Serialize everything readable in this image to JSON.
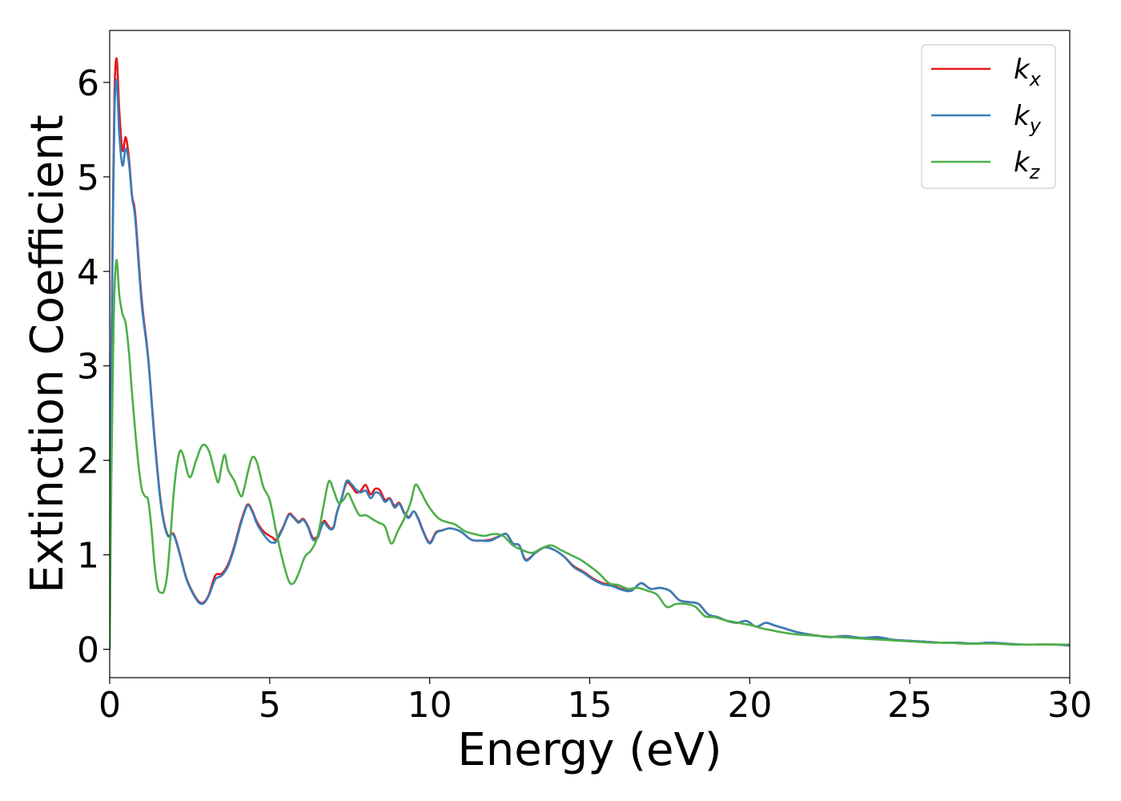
{
  "chart_data": {
    "type": "line",
    "xlabel": "Energy (eV)",
    "ylabel": "Extinction Coefficient",
    "xlim": [
      0,
      30
    ],
    "ylim": [
      -0.3,
      6.55
    ],
    "xticks": [
      0,
      5,
      10,
      15,
      20,
      25,
      30
    ],
    "yticks": [
      0,
      1,
      2,
      3,
      4,
      5,
      6
    ],
    "grid": false,
    "legend_position": "top-right",
    "series": [
      {
        "name": "k_x",
        "label_main": "k",
        "label_sub": "x",
        "color": "#e41a1c",
        "x": [
          0,
          0.05,
          0.1,
          0.15,
          0.22,
          0.3,
          0.4,
          0.5,
          0.6,
          0.7,
          0.8,
          1.0,
          1.2,
          1.4,
          1.6,
          1.8,
          2.0,
          2.2,
          2.4,
          2.6,
          2.8,
          2.95,
          3.1,
          3.3,
          3.5,
          3.7,
          3.9,
          4.1,
          4.3,
          4.45,
          4.6,
          4.8,
          5.0,
          5.1,
          5.2,
          5.4,
          5.6,
          5.75,
          5.9,
          6.05,
          6.2,
          6.35,
          6.5,
          6.6,
          6.7,
          6.8,
          6.9,
          7.0,
          7.1,
          7.25,
          7.4,
          7.55,
          7.7,
          7.85,
          8.0,
          8.15,
          8.3,
          8.45,
          8.6,
          8.75,
          8.9,
          9.05,
          9.2,
          9.35,
          9.5,
          9.65,
          9.8,
          10.0,
          10.2,
          10.4,
          10.6,
          10.8,
          11.0,
          11.3,
          11.6,
          11.9,
          12.2,
          12.4,
          12.6,
          12.8,
          13.0,
          13.3,
          13.6,
          13.9,
          14.2,
          14.5,
          14.8,
          15.1,
          15.4,
          15.7,
          16.0,
          16.3,
          16.6,
          16.9,
          17.2,
          17.5,
          17.8,
          18.1,
          18.4,
          18.7,
          19.0,
          19.3,
          19.6,
          19.9,
          20.2,
          20.5,
          20.8,
          21.1,
          21.5,
          22.0,
          22.5,
          23.0,
          23.5,
          24.0,
          24.5,
          25.0,
          25.5,
          26.0,
          26.5,
          27.0,
          27.5,
          28.0,
          28.5,
          29.0,
          29.5,
          30.0
        ],
        "y": [
          0,
          3.0,
          4.6,
          5.9,
          6.25,
          5.7,
          5.28,
          5.42,
          5.2,
          4.8,
          4.6,
          3.7,
          3.1,
          2.25,
          1.55,
          1.22,
          1.22,
          1.0,
          0.75,
          0.6,
          0.5,
          0.5,
          0.58,
          0.78,
          0.8,
          0.9,
          1.1,
          1.35,
          1.53,
          1.47,
          1.35,
          1.25,
          1.2,
          1.18,
          1.16,
          1.28,
          1.43,
          1.4,
          1.35,
          1.38,
          1.3,
          1.18,
          1.2,
          1.3,
          1.36,
          1.32,
          1.28,
          1.3,
          1.45,
          1.6,
          1.76,
          1.73,
          1.66,
          1.68,
          1.74,
          1.64,
          1.7,
          1.68,
          1.58,
          1.6,
          1.52,
          1.55,
          1.45,
          1.4,
          1.46,
          1.38,
          1.25,
          1.13,
          1.24,
          1.26,
          1.28,
          1.27,
          1.24,
          1.16,
          1.15,
          1.16,
          1.2,
          1.22,
          1.12,
          1.1,
          0.95,
          1.02,
          1.08,
          1.05,
          0.98,
          0.88,
          0.82,
          0.75,
          0.7,
          0.68,
          0.64,
          0.62,
          0.7,
          0.64,
          0.65,
          0.62,
          0.52,
          0.5,
          0.48,
          0.37,
          0.34,
          0.3,
          0.28,
          0.3,
          0.24,
          0.28,
          0.25,
          0.22,
          0.18,
          0.15,
          0.13,
          0.14,
          0.12,
          0.12,
          0.1,
          0.09,
          0.08,
          0.07,
          0.07,
          0.06,
          0.07,
          0.06,
          0.05,
          0.05,
          0.05,
          0.04
        ]
      },
      {
        "name": "k_y",
        "label_main": "k",
        "label_sub": "y",
        "color": "#377eb8",
        "x": [
          0,
          0.05,
          0.1,
          0.15,
          0.22,
          0.3,
          0.4,
          0.5,
          0.6,
          0.7,
          0.8,
          1.0,
          1.2,
          1.4,
          1.6,
          1.8,
          2.0,
          2.2,
          2.4,
          2.6,
          2.8,
          2.95,
          3.1,
          3.3,
          3.5,
          3.7,
          3.9,
          4.1,
          4.3,
          4.45,
          4.6,
          4.8,
          5.0,
          5.1,
          5.2,
          5.4,
          5.6,
          5.75,
          5.9,
          6.05,
          6.2,
          6.35,
          6.5,
          6.6,
          6.7,
          6.8,
          6.9,
          7.0,
          7.1,
          7.25,
          7.4,
          7.55,
          7.7,
          7.85,
          8.0,
          8.15,
          8.3,
          8.45,
          8.6,
          8.75,
          8.9,
          9.05,
          9.2,
          9.35,
          9.5,
          9.65,
          9.8,
          10.0,
          10.2,
          10.4,
          10.6,
          10.8,
          11.0,
          11.3,
          11.6,
          11.9,
          12.2,
          12.4,
          12.6,
          12.8,
          13.0,
          13.3,
          13.6,
          13.9,
          14.2,
          14.5,
          14.8,
          15.1,
          15.4,
          15.7,
          16.0,
          16.3,
          16.6,
          16.9,
          17.2,
          17.5,
          17.8,
          18.1,
          18.4,
          18.7,
          19.0,
          19.3,
          19.6,
          19.9,
          20.2,
          20.5,
          20.8,
          21.1,
          21.5,
          22.0,
          22.5,
          23.0,
          23.5,
          24.0,
          24.5,
          25.0,
          25.5,
          26.0,
          26.5,
          27.0,
          27.5,
          28.0,
          28.5,
          29.0,
          29.5,
          30.0
        ],
        "y": [
          0,
          2.9,
          4.5,
          5.7,
          6.02,
          5.45,
          5.12,
          5.3,
          5.15,
          4.78,
          4.55,
          3.65,
          3.08,
          2.22,
          1.53,
          1.21,
          1.21,
          0.99,
          0.74,
          0.59,
          0.49,
          0.49,
          0.57,
          0.74,
          0.78,
          0.88,
          1.08,
          1.33,
          1.52,
          1.46,
          1.33,
          1.22,
          1.14,
          1.13,
          1.14,
          1.27,
          1.42,
          1.39,
          1.34,
          1.37,
          1.29,
          1.16,
          1.18,
          1.28,
          1.34,
          1.3,
          1.27,
          1.29,
          1.44,
          1.6,
          1.78,
          1.75,
          1.69,
          1.66,
          1.68,
          1.6,
          1.66,
          1.64,
          1.56,
          1.59,
          1.5,
          1.54,
          1.44,
          1.39,
          1.46,
          1.37,
          1.24,
          1.12,
          1.23,
          1.26,
          1.28,
          1.27,
          1.24,
          1.16,
          1.15,
          1.15,
          1.2,
          1.22,
          1.12,
          1.1,
          0.94,
          1.02,
          1.08,
          1.05,
          0.98,
          0.87,
          0.81,
          0.74,
          0.69,
          0.67,
          0.63,
          0.62,
          0.7,
          0.64,
          0.65,
          0.62,
          0.52,
          0.5,
          0.48,
          0.37,
          0.34,
          0.3,
          0.28,
          0.3,
          0.24,
          0.28,
          0.25,
          0.22,
          0.18,
          0.15,
          0.13,
          0.14,
          0.12,
          0.13,
          0.1,
          0.09,
          0.08,
          0.07,
          0.07,
          0.06,
          0.07,
          0.06,
          0.05,
          0.05,
          0.05,
          0.04
        ]
      },
      {
        "name": "k_z",
        "label_main": "k",
        "label_sub": "z",
        "color": "#4daf4a",
        "x": [
          0,
          0.05,
          0.1,
          0.15,
          0.22,
          0.3,
          0.4,
          0.5,
          0.6,
          0.7,
          0.8,
          0.9,
          1.0,
          1.1,
          1.2,
          1.3,
          1.4,
          1.5,
          1.6,
          1.7,
          1.8,
          1.9,
          2.0,
          2.1,
          2.2,
          2.3,
          2.5,
          2.7,
          2.9,
          3.1,
          3.3,
          3.4,
          3.5,
          3.6,
          3.7,
          3.9,
          4.1,
          4.2,
          4.3,
          4.45,
          4.6,
          4.8,
          5.0,
          5.2,
          5.4,
          5.6,
          5.75,
          5.9,
          6.1,
          6.3,
          6.5,
          6.7,
          6.85,
          7.0,
          7.15,
          7.3,
          7.45,
          7.6,
          7.8,
          8.0,
          8.2,
          8.4,
          8.6,
          8.8,
          9.0,
          9.2,
          9.4,
          9.55,
          9.7,
          9.9,
          10.1,
          10.3,
          10.5,
          10.8,
          11.1,
          11.4,
          11.7,
          12.0,
          12.3,
          12.6,
          12.9,
          13.2,
          13.5,
          13.8,
          14.1,
          14.4,
          14.7,
          15.0,
          15.3,
          15.6,
          15.9,
          16.2,
          16.5,
          16.8,
          17.1,
          17.4,
          17.7,
          18.0,
          18.3,
          18.6,
          18.9,
          19.2,
          19.5,
          19.8,
          20.1,
          20.4,
          20.7,
          21.0,
          21.4,
          21.8,
          22.2,
          22.7,
          23.2,
          23.7,
          24.2,
          24.7,
          25.2,
          25.7,
          26.2,
          26.7,
          27.2,
          27.7,
          28.2,
          28.7,
          29.2,
          29.6,
          30.0
        ],
        "y": [
          0,
          1.8,
          3.0,
          3.8,
          4.12,
          3.75,
          3.55,
          3.45,
          3.15,
          2.7,
          2.3,
          1.95,
          1.7,
          1.62,
          1.58,
          1.3,
          0.9,
          0.65,
          0.6,
          0.62,
          0.8,
          1.2,
          1.65,
          1.95,
          2.1,
          2.05,
          1.82,
          2.0,
          2.16,
          2.1,
          1.85,
          1.77,
          1.95,
          2.06,
          1.9,
          1.78,
          1.62,
          1.7,
          1.85,
          2.03,
          1.98,
          1.72,
          1.58,
          1.25,
          0.95,
          0.72,
          0.7,
          0.8,
          0.98,
          1.05,
          1.2,
          1.55,
          1.78,
          1.68,
          1.55,
          1.58,
          1.65,
          1.55,
          1.42,
          1.42,
          1.38,
          1.34,
          1.3,
          1.12,
          1.25,
          1.38,
          1.55,
          1.74,
          1.68,
          1.55,
          1.45,
          1.38,
          1.35,
          1.32,
          1.25,
          1.22,
          1.2,
          1.22,
          1.2,
          1.1,
          1.05,
          1.02,
          1.07,
          1.1,
          1.05,
          1.0,
          0.95,
          0.88,
          0.8,
          0.7,
          0.68,
          0.64,
          0.65,
          0.62,
          0.58,
          0.45,
          0.48,
          0.48,
          0.45,
          0.35,
          0.34,
          0.31,
          0.29,
          0.27,
          0.25,
          0.22,
          0.2,
          0.18,
          0.16,
          0.15,
          0.14,
          0.13,
          0.12,
          0.11,
          0.1,
          0.09,
          0.08,
          0.07,
          0.07,
          0.06,
          0.06,
          0.06,
          0.05,
          0.05,
          0.05,
          0.05,
          0.05
        ]
      }
    ]
  }
}
